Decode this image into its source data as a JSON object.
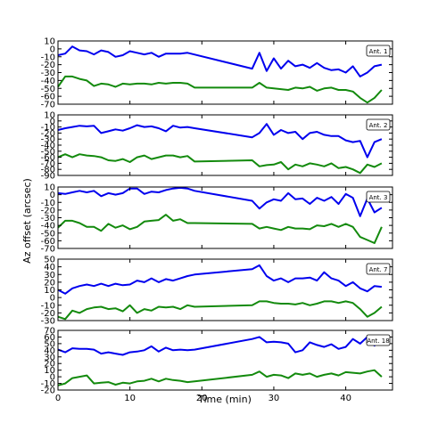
{
  "chart_data": {
    "type": "line",
    "xlabel": "Time (min)",
    "ylabel": "Az offset (arcsec)",
    "xlim": [
      0,
      46.5
    ],
    "x_ticks": [
      0,
      10,
      20,
      30,
      40
    ],
    "grid": false,
    "colors": {
      "blue": "#0000ee",
      "green": "#138a0d"
    },
    "panels": [
      {
        "label": "Ant. 1",
        "ylim": [
          -70,
          10
        ],
        "y_ticks": [
          10,
          0,
          -10,
          -20,
          -30,
          -40,
          -50,
          -60,
          -70
        ],
        "series": [
          {
            "color": "blue",
            "x": [
              0,
              1,
              2,
              3,
              4,
              5,
              6,
              7,
              8,
              9,
              10,
              11,
              12,
              13,
              14,
              15,
              16,
              17,
              18,
              27,
              28,
              29,
              30,
              31,
              32,
              33,
              34,
              35,
              36,
              37,
              38,
              39,
              40,
              41,
              42,
              43,
              44,
              45
            ],
            "y": [
              -8,
              -6,
              3,
              -2,
              -3,
              -7,
              -2,
              -4,
              -10,
              -8,
              -3,
              -5,
              -7,
              -5,
              -10,
              -6,
              -6,
              -6,
              -5,
              -25,
              -5,
              -28,
              -12,
              -25,
              -15,
              -22,
              -20,
              -24,
              -18,
              -24,
              -27,
              -26,
              -30,
              -22,
              -35,
              -30,
              -22,
              -20
            ]
          },
          {
            "color": "green",
            "x": [
              0,
              1,
              2,
              3,
              4,
              5,
              6,
              7,
              8,
              9,
              10,
              11,
              12,
              13,
              14,
              15,
              16,
              17,
              18,
              19,
              27,
              28,
              29,
              30,
              31,
              32,
              33,
              34,
              35,
              36,
              37,
              38,
              39,
              40,
              41,
              42,
              43,
              44,
              45
            ],
            "y": [
              -48,
              -35,
              -35,
              -38,
              -40,
              -47,
              -44,
              -45,
              -48,
              -44,
              -45,
              -44,
              -44,
              -45,
              -43,
              -44,
              -43,
              -43,
              -44,
              -49,
              -49,
              -43,
              -49,
              -50,
              -51,
              -52,
              -49,
              -50,
              -48,
              -53,
              -50,
              -49,
              -52,
              -52,
              -54,
              -62,
              -68,
              -62,
              -52
            ]
          }
        ]
      },
      {
        "label": "Ant. 2",
        "ylim": [
          -90,
          10
        ],
        "y_ticks": [
          10,
          0,
          -10,
          -20,
          -30,
          -40,
          -50,
          -60,
          -70,
          -80,
          -90
        ],
        "series": [
          {
            "color": "blue",
            "x": [
              0,
              1,
              2,
              3,
              4,
              5,
              6,
              7,
              8,
              9,
              10,
              11,
              12,
              13,
              14,
              15,
              16,
              17,
              18,
              19,
              27,
              28,
              29,
              30,
              31,
              32,
              33,
              34,
              35,
              36,
              37,
              38,
              39,
              40,
              41,
              42,
              43,
              44,
              45
            ],
            "y": [
              -15,
              -12,
              -10,
              -8,
              -9,
              -8,
              -20,
              -17,
              -14,
              -16,
              -12,
              -7,
              -10,
              -9,
              -12,
              -17,
              -8,
              -11,
              -10,
              -12,
              -27,
              -20,
              -5,
              -23,
              -15,
              -20,
              -18,
              -30,
              -20,
              -18,
              -23,
              -25,
              -25,
              -32,
              -35,
              -33,
              -60,
              -35,
              -30
            ]
          },
          {
            "color": "green",
            "x": [
              0,
              1,
              2,
              3,
              4,
              5,
              6,
              7,
              8,
              9,
              10,
              11,
              12,
              13,
              14,
              15,
              16,
              17,
              18,
              19,
              27,
              28,
              29,
              30,
              31,
              32,
              33,
              34,
              35,
              36,
              37,
              38,
              39,
              40,
              41,
              42,
              43,
              44,
              45
            ],
            "y": [
              -60,
              -55,
              -60,
              -55,
              -57,
              -58,
              -60,
              -65,
              -66,
              -63,
              -68,
              -60,
              -57,
              -63,
              -60,
              -57,
              -57,
              -60,
              -58,
              -67,
              -65,
              -75,
              -73,
              -72,
              -68,
              -80,
              -72,
              -75,
              -70,
              -72,
              -75,
              -70,
              -78,
              -76,
              -80,
              -86,
              -72,
              -76,
              -70
            ]
          }
        ]
      },
      {
        "label": "Ant. 3",
        "ylim": [
          -70,
          10
        ],
        "y_ticks": [
          10,
          0,
          -10,
          -20,
          -30,
          -40,
          -50,
          -60,
          -70
        ],
        "series": [
          {
            "color": "blue",
            "x": [
              0,
              1,
              2,
              3,
              4,
              5,
              6,
              7,
              8,
              9,
              10,
              11,
              12,
              13,
              14,
              15,
              16,
              17,
              18,
              19,
              27,
              28,
              29,
              30,
              31,
              32,
              33,
              34,
              35,
              36,
              37,
              38,
              39,
              40,
              41,
              42,
              43,
              44,
              45
            ],
            "y": [
              2,
              1,
              3,
              5,
              3,
              5,
              -2,
              2,
              0,
              2,
              8,
              8,
              1,
              4,
              3,
              6,
              8,
              9,
              8,
              5,
              -8,
              -18,
              -10,
              -6,
              -8,
              2,
              -6,
              -5,
              -12,
              -4,
              -8,
              -3,
              -12,
              1,
              -4,
              -28,
              -5,
              -23,
              -17
            ]
          },
          {
            "color": "green",
            "x": [
              0,
              1,
              2,
              3,
              4,
              5,
              6,
              7,
              8,
              9,
              10,
              11,
              12,
              13,
              14,
              15,
              16,
              17,
              18,
              19,
              27,
              28,
              29,
              30,
              31,
              32,
              33,
              34,
              35,
              36,
              37,
              38,
              39,
              40,
              41,
              42,
              43,
              44,
              45
            ],
            "y": [
              -43,
              -34,
              -34,
              -37,
              -42,
              -42,
              -47,
              -38,
              -43,
              -40,
              -45,
              -42,
              -35,
              -34,
              -33,
              -26,
              -34,
              -32,
              -37,
              -37,
              -38,
              -44,
              -42,
              -44,
              -46,
              -42,
              -44,
              -44,
              -45,
              -40,
              -41,
              -38,
              -42,
              -38,
              -42,
              -55,
              -59,
              -63,
              -42
            ]
          }
        ]
      },
      {
        "label": "Ant. 7",
        "ylim": [
          -30,
          50
        ],
        "y_ticks": [
          50,
          40,
          30,
          20,
          10,
          0,
          -10,
          -20,
          -30
        ],
        "series": [
          {
            "color": "blue",
            "x": [
              0,
              1,
              2,
              3,
              4,
              5,
              6,
              7,
              8,
              9,
              10,
              11,
              12,
              13,
              14,
              15,
              16,
              17,
              18,
              19,
              27,
              28,
              29,
              30,
              31,
              32,
              33,
              34,
              35,
              36,
              37,
              38,
              39,
              40,
              41,
              42,
              43,
              44,
              45
            ],
            "y": [
              10,
              5,
              12,
              15,
              17,
              15,
              18,
              15,
              18,
              16,
              17,
              22,
              20,
              25,
              20,
              24,
              22,
              25,
              28,
              30,
              37,
              42,
              28,
              22,
              25,
              20,
              25,
              25,
              26,
              22,
              33,
              25,
              22,
              15,
              20,
              12,
              8,
              15,
              14
            ]
          },
          {
            "color": "green",
            "x": [
              0,
              1,
              2,
              3,
              4,
              5,
              6,
              7,
              8,
              9,
              10,
              11,
              12,
              13,
              14,
              15,
              16,
              17,
              18,
              19,
              27,
              28,
              29,
              30,
              31,
              32,
              33,
              34,
              35,
              36,
              37,
              38,
              39,
              40,
              41,
              42,
              43,
              44,
              45
            ],
            "y": [
              -25,
              -28,
              -17,
              -20,
              -15,
              -13,
              -12,
              -15,
              -14,
              -18,
              -10,
              -20,
              -15,
              -17,
              -12,
              -13,
              -12,
              -15,
              -10,
              -12,
              -10,
              -5,
              -5,
              -7,
              -8,
              -8,
              -9,
              -7,
              -10,
              -8,
              -5,
              -5,
              -7,
              -5,
              -7,
              -15,
              -25,
              -20,
              -12
            ]
          }
        ]
      },
      {
        "label": "Ant. 18",
        "ylim": [
          -20,
          70
        ],
        "y_ticks": [
          70,
          60,
          50,
          40,
          30,
          20,
          10,
          0,
          -10,
          -20
        ],
        "series": [
          {
            "color": "blue",
            "x": [
              0,
              1,
              2,
              3,
              4,
              5,
              6,
              7,
              8,
              9,
              10,
              11,
              12,
              13,
              14,
              15,
              16,
              17,
              18,
              19,
              27,
              28,
              29,
              30,
              31,
              32,
              33,
              34,
              35,
              36,
              37,
              38,
              39,
              40,
              41,
              42,
              43,
              44,
              45
            ],
            "y": [
              41,
              37,
              43,
              42,
              42,
              41,
              35,
              37,
              35,
              33,
              37,
              38,
              40,
              46,
              38,
              44,
              40,
              41,
              40,
              41,
              57,
              60,
              52,
              53,
              52,
              50,
              37,
              40,
              52,
              48,
              45,
              49,
              42,
              45,
              57,
              50,
              60,
              47,
              62
            ]
          },
          {
            "color": "green",
            "x": [
              0,
              1,
              2,
              3,
              4,
              5,
              6,
              7,
              8,
              9,
              10,
              11,
              12,
              13,
              14,
              15,
              16,
              17,
              18,
              19,
              27,
              28,
              29,
              30,
              31,
              32,
              33,
              34,
              35,
              36,
              37,
              38,
              39,
              40,
              41,
              42,
              43,
              44,
              45
            ],
            "y": [
              -13,
              -10,
              -2,
              0,
              2,
              -10,
              -9,
              -8,
              -12,
              -9,
              -10,
              -7,
              -6,
              -3,
              -7,
              -3,
              -5,
              -6,
              -8,
              -7,
              3,
              8,
              0,
              3,
              2,
              -2,
              5,
              3,
              5,
              0,
              3,
              5,
              2,
              7,
              6,
              5,
              8,
              10,
              0
            ]
          }
        ]
      }
    ]
  }
}
